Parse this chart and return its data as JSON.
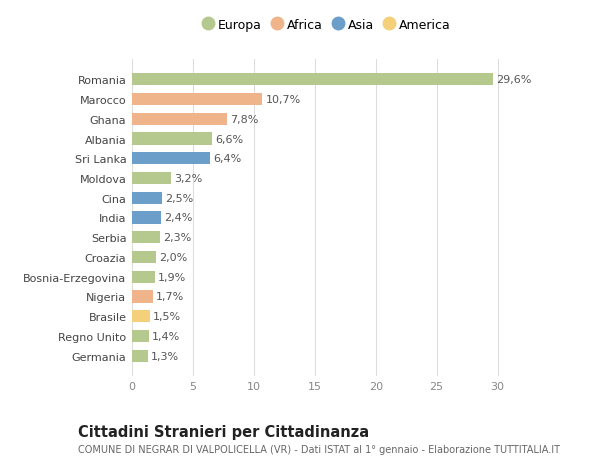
{
  "countries": [
    "Romania",
    "Marocco",
    "Ghana",
    "Albania",
    "Sri Lanka",
    "Moldova",
    "Cina",
    "India",
    "Serbia",
    "Croazia",
    "Bosnia-Erzegovina",
    "Nigeria",
    "Brasile",
    "Regno Unito",
    "Germania"
  ],
  "values": [
    29.6,
    10.7,
    7.8,
    6.6,
    6.4,
    3.2,
    2.5,
    2.4,
    2.3,
    2.0,
    1.9,
    1.7,
    1.5,
    1.4,
    1.3
  ],
  "labels": [
    "29,6%",
    "10,7%",
    "7,8%",
    "6,6%",
    "6,4%",
    "3,2%",
    "2,5%",
    "2,4%",
    "2,3%",
    "2,0%",
    "1,9%",
    "1,7%",
    "1,5%",
    "1,4%",
    "1,3%"
  ],
  "continents": [
    "Europa",
    "Africa",
    "Africa",
    "Europa",
    "Asia",
    "Europa",
    "Asia",
    "Asia",
    "Europa",
    "Europa",
    "Europa",
    "Africa",
    "America",
    "Europa",
    "Europa"
  ],
  "continent_colors": {
    "Europa": "#b5c98e",
    "Africa": "#f0b48a",
    "Asia": "#6b9ec8",
    "America": "#f5d07a"
  },
  "legend_order": [
    "Europa",
    "Africa",
    "Asia",
    "America"
  ],
  "title": "Cittadini Stranieri per Cittadinanza",
  "subtitle": "COMUNE DI NEGRAR DI VALPOLICELLA (VR) - Dati ISTAT al 1° gennaio - Elaborazione TUTTITALIA.IT",
  "xlim": [
    0,
    32
  ],
  "xticks": [
    0,
    5,
    10,
    15,
    20,
    25,
    30
  ],
  "background_color": "#ffffff",
  "grid_color": "#dddddd",
  "bar_height": 0.62,
  "label_fontsize": 8.0,
  "tick_fontsize": 8.0,
  "title_fontsize": 10.5,
  "subtitle_fontsize": 7.0
}
